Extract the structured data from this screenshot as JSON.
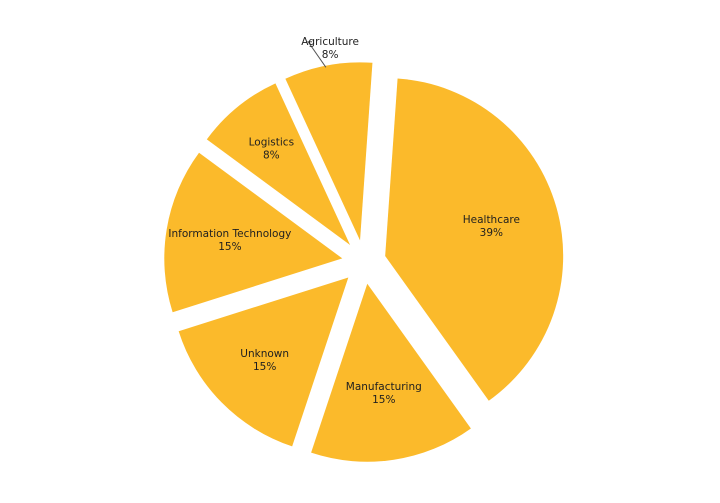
{
  "chart_data": {
    "type": "pie",
    "title": "",
    "exploded": true,
    "slice_color": "#FBBA2B",
    "slices": [
      {
        "label": "Healthcare",
        "value": 39,
        "value_label": "39%"
      },
      {
        "label": "Manufacturing",
        "value": 15,
        "value_label": "15%"
      },
      {
        "label": "Unknown",
        "value": 15,
        "value_label": "15%"
      },
      {
        "label": "Information Technology",
        "value": 15,
        "value_label": "15%"
      },
      {
        "label": "Logistics",
        "value": 8,
        "value_label": "8%"
      },
      {
        "label": "Agriculture",
        "value": 8,
        "value_label": "8%"
      }
    ],
    "label_color": "#1F1F1F",
    "leader_line_color": "#555555"
  }
}
